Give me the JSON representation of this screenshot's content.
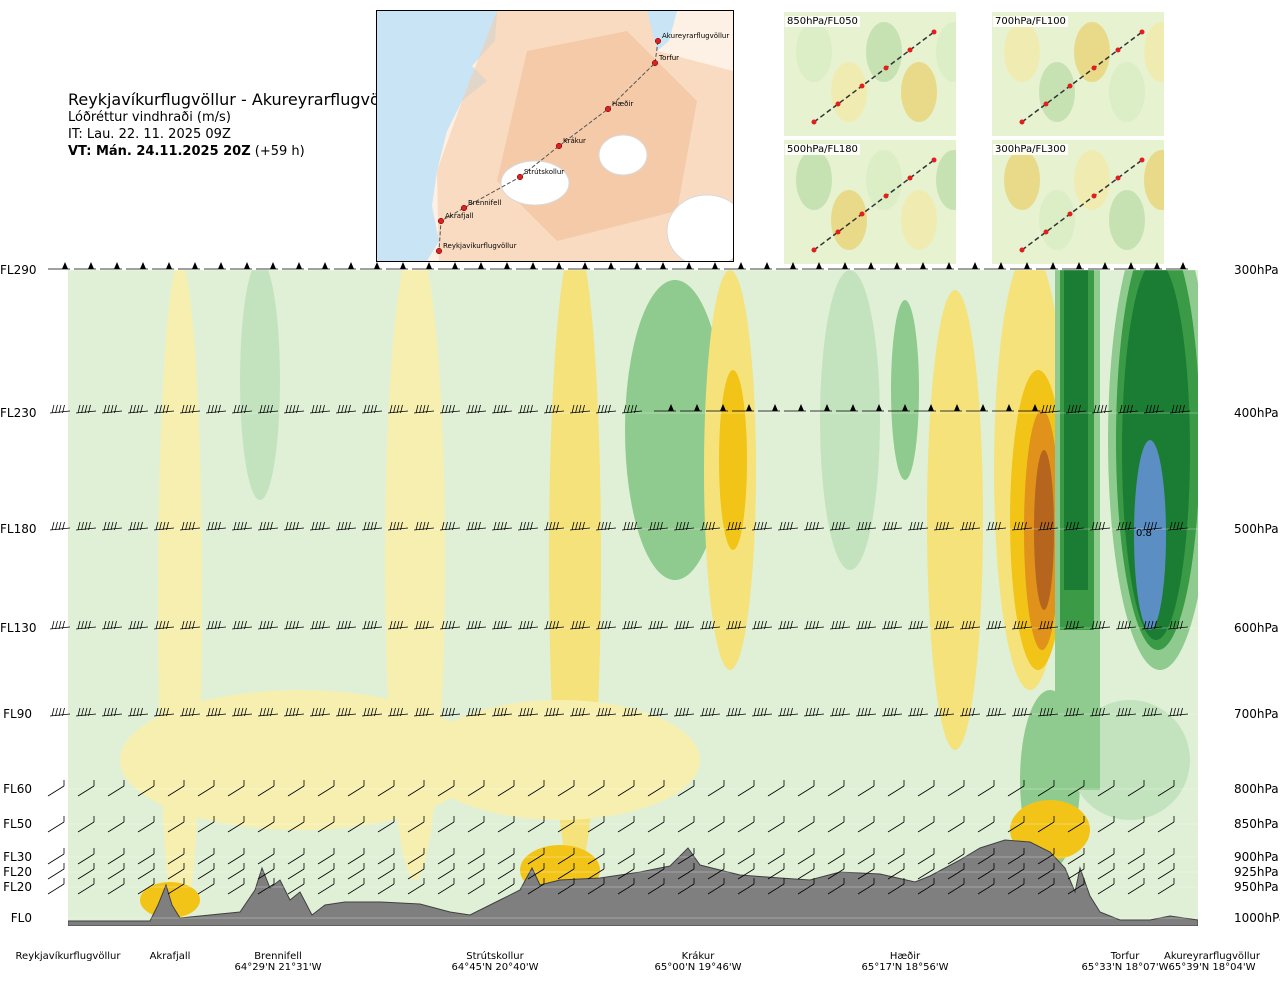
{
  "header": {
    "title": "Reykjavíkurflugvöllur - Akureyrarflugvöllur",
    "subtitle": "Lóðréttur vindhraði (m/s)",
    "init_time": "IT: Lau. 22. 11. 2025 09Z",
    "valid_time": "VT: Mán. 24.11.2025 20Z",
    "lead": "(+59 h)"
  },
  "route_map": {
    "points": [
      {
        "name": "Akureyrarflugvöllur"
      },
      {
        "name": "Torfur"
      },
      {
        "name": "Hæðir"
      },
      {
        "name": "Krákur"
      },
      {
        "name": "Strútskollur"
      },
      {
        "name": "Brennifell"
      },
      {
        "name": "Akrafjall"
      },
      {
        "name": "Reykjavíkurflugvöllur"
      }
    ]
  },
  "level_maps": [
    {
      "label": "850hPa/FL050"
    },
    {
      "label": "700hPa/FL100"
    },
    {
      "label": "500hPa/FL180"
    },
    {
      "label": "300hPa/FL300"
    }
  ],
  "chart_data": {
    "type": "heatmap",
    "title": "Reykjavíkurflugvöllur - Akureyrarflugvöllur",
    "variable": "Lóðréttur vindhraði (m/s)",
    "colors": {
      "strong_down": "#b5651d",
      "down_2": "#e0921a",
      "down_1": "#f2c418",
      "down_weak": "#f5e27a",
      "down_very_weak": "#f7efb0",
      "neutral": "#ffffe8",
      "up_weak": "#dff0d6",
      "up_1": "#c3e3bf",
      "up_2": "#8fcb8e",
      "up_3": "#3a9a45",
      "up_4": "#1b7d34",
      "up_max": "#5b8fc4",
      "terrain": "#7f7f7f"
    },
    "max_label": "0.8",
    "y_left_ticks": [
      "FL290",
      "FL230",
      "FL180",
      "FL130",
      "FL90",
      "FL60",
      "FL50",
      "FL30",
      "FL20",
      "FL20",
      "FL0"
    ],
    "y_right_ticks": [
      "300hPa",
      "400hPa",
      "500hPa",
      "600hPa",
      "700hPa",
      "800hPa",
      "850hPa",
      "900hPa",
      "925hPa",
      "950hPa",
      "1000hPa"
    ],
    "x_points": [
      {
        "name": "Reykjavíkurflugvöllur",
        "coord": ""
      },
      {
        "name": "Akrafjall",
        "coord": ""
      },
      {
        "name": "Brennifell",
        "coord": "64°29'N 21°31'W"
      },
      {
        "name": "Strútskollur",
        "coord": "64°45'N 20°40'W"
      },
      {
        "name": "Krákur",
        "coord": "65°00'N 19°46'W"
      },
      {
        "name": "Hæðir",
        "coord": "65°17'N 18°56'W"
      },
      {
        "name": "Torfur",
        "coord": "65°33'N 18°07'W"
      },
      {
        "name": "Akureyrarflugvöllur",
        "coord": "65°39'N 18°04'W"
      }
    ]
  }
}
